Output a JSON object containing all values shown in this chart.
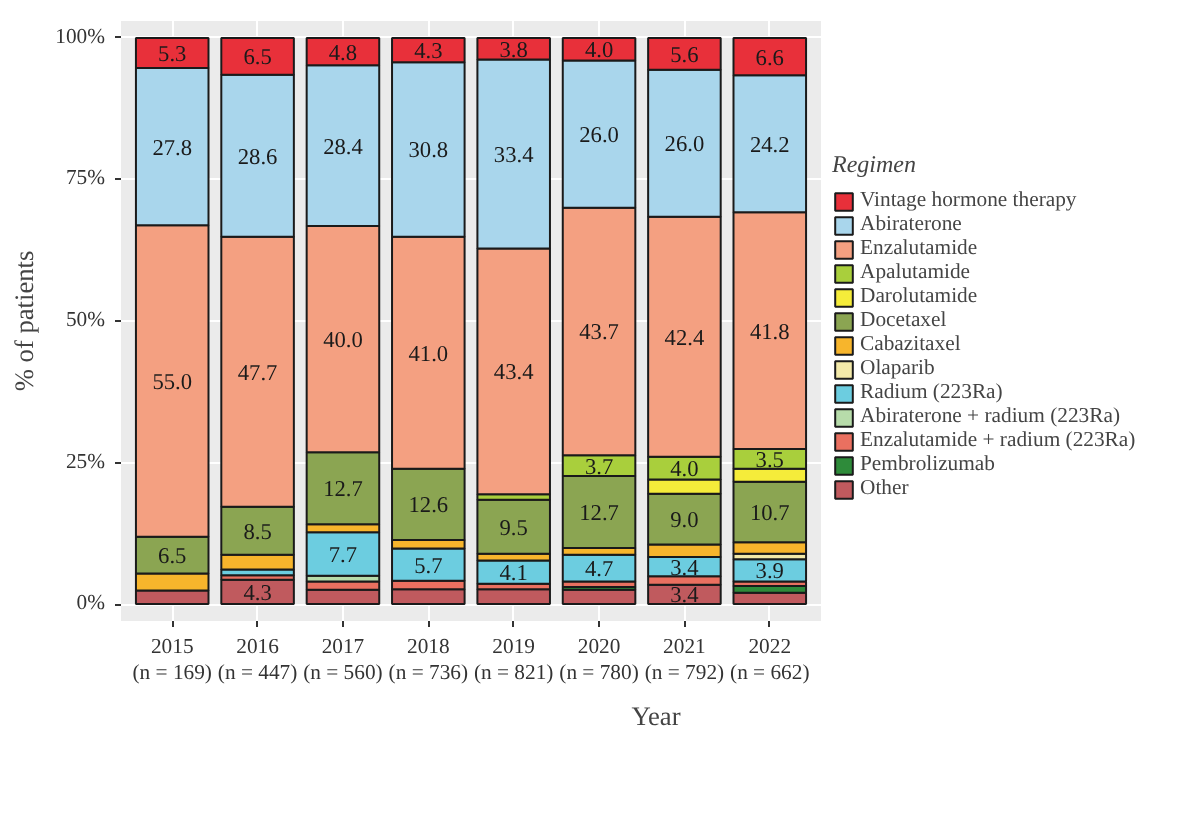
{
  "chart_data": {
    "type": "bar",
    "stacked": true,
    "xlabel": "Year",
    "ylabel": "% of patients",
    "legend_title": "Regimen",
    "legend": "right",
    "grid": true,
    "categories": [
      "2015\n(n = 169)",
      "2016\n(n = 447)",
      "2017\n(n = 560)",
      "2018\n(n = 736)",
      "2019\n(n = 821)",
      "2020\n(n = 780)",
      "2021\n(n = 792)",
      "2022\n(n = 662)"
    ],
    "ylim": [
      -3,
      103
    ],
    "yticks": [
      {
        "value": 0,
        "label": "0%"
      },
      {
        "value": 25,
        "label": "25%"
      },
      {
        "value": 50,
        "label": "50%"
      },
      {
        "value": 75,
        "label": "75%"
      },
      {
        "value": 100,
        "label": "100%"
      }
    ],
    "series": [
      {
        "name": "Other",
        "color": "#c05a5e",
        "values": [
          2.4,
          4.3,
          2.5,
          2.6,
          2.6,
          2.5,
          3.4,
          2.0
        ],
        "value_labels": [
          null,
          "4.3",
          null,
          null,
          null,
          null,
          "3.4",
          null
        ]
      },
      {
        "name": "Pembrolizumab",
        "color": "#2e8b3a",
        "values": [
          null,
          null,
          null,
          null,
          null,
          0.5,
          null,
          1.2
        ]
      },
      {
        "name": "Enzalutamide + radium (223Ra)",
        "color": "#ea7060",
        "values": [
          null,
          0.8,
          1.5,
          1.5,
          1.0,
          1.0,
          1.5,
          0.8
        ]
      },
      {
        "name": "Abiraterone + radium (223Ra)",
        "color": "#b7dcaa",
        "values": [
          null,
          null,
          1.0,
          null,
          null,
          null,
          null,
          null
        ]
      },
      {
        "name": "Radium (223Ra)",
        "color": "#6ccde0",
        "values": [
          null,
          1.0,
          7.7,
          5.7,
          4.1,
          4.7,
          3.4,
          3.9
        ],
        "value_labels": [
          null,
          null,
          "7.7",
          "5.7",
          "4.1",
          "4.7",
          "3.4",
          "3.9"
        ]
      },
      {
        "name": "Olaparib",
        "color": "#f3e9a9",
        "values": [
          null,
          null,
          null,
          null,
          null,
          null,
          null,
          1.0
        ]
      },
      {
        "name": "Cabazitaxel",
        "color": "#f7b52c",
        "values": [
          3.0,
          2.6,
          1.4,
          1.5,
          1.2,
          1.2,
          2.2,
          2.0
        ]
      },
      {
        "name": "Docetaxel",
        "color": "#8ba552",
        "values": [
          6.5,
          8.5,
          12.7,
          12.6,
          9.5,
          12.7,
          9.0,
          10.7
        ],
        "value_labels": [
          "6.5",
          "8.5",
          "12.7",
          "12.6",
          "9.5",
          "12.7",
          "9.0",
          "10.7"
        ]
      },
      {
        "name": "Darolutamide",
        "color": "#f5ec3a",
        "values": [
          null,
          null,
          null,
          null,
          null,
          null,
          2.5,
          2.3
        ]
      },
      {
        "name": "Apalutamide",
        "color": "#a9cf3c",
        "values": [
          null,
          null,
          null,
          null,
          1.0,
          3.7,
          4.0,
          3.5
        ],
        "value_labels": [
          null,
          null,
          null,
          null,
          null,
          "3.7",
          "4.0",
          "3.5"
        ]
      },
      {
        "name": "Enzalutamide",
        "color": "#f4a081",
        "values": [
          55.0,
          47.7,
          40.0,
          41.0,
          43.4,
          43.7,
          42.4,
          41.8
        ],
        "value_labels": [
          "55.0",
          "47.7",
          "40.0",
          "41.0",
          "43.4",
          "43.7",
          "42.4",
          "41.8"
        ]
      },
      {
        "name": "Abiraterone",
        "color": "#a9d6ec",
        "values": [
          27.8,
          28.6,
          28.4,
          30.8,
          33.4,
          26.0,
          26.0,
          24.2
        ],
        "value_labels": [
          "27.8",
          "28.6",
          "28.4",
          "30.8",
          "33.4",
          "26.0",
          "26.0",
          "24.2"
        ]
      },
      {
        "name": "Vintage hormone therapy",
        "color": "#e8303a",
        "values": [
          5.3,
          6.5,
          4.8,
          4.3,
          3.8,
          4.0,
          5.6,
          6.6
        ],
        "value_labels": [
          "5.3",
          "6.5",
          "4.8",
          "4.3",
          "3.8",
          "4.0",
          "5.6",
          "6.6"
        ]
      }
    ]
  }
}
